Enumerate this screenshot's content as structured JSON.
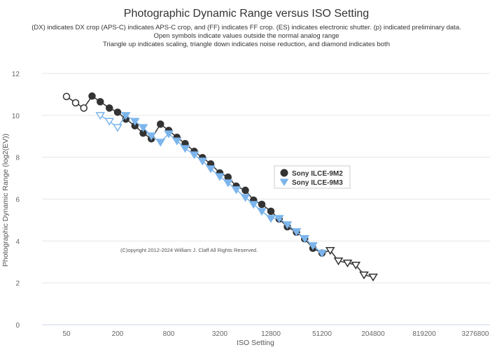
{
  "chart_data": {
    "type": "line",
    "title": "Photographic Dynamic Range versus ISO Setting",
    "subtitle": [
      "(DX) indicates DX crop (APS-C) indicates APS-C crop, and (FF) indicates FF crop. (ES) indicates electronic shutter. (p) indicated preliminary data.",
      "Open symbols indicate values outside the normal analog range",
      "Triangle up indicates scaling, triangle down indicates noise reduction, and diamond indicates both"
    ],
    "xlabel": "ISO Setting",
    "ylabel": "Photographic Dynamic Range (log2(EV))",
    "x_scale": "log2",
    "x_ticks": [
      "50",
      "200",
      "800",
      "3200",
      "12800",
      "51200",
      "204800",
      "819200",
      "3276800"
    ],
    "y_ticks": [
      "0",
      "2",
      "4",
      "6",
      "8",
      "10",
      "12"
    ],
    "ylim": [
      0,
      12
    ],
    "grid": "horizontal",
    "legend_position": "center-right",
    "copyright": "(C)opyright 2012-2024 William J. Claff All Rights Reserved.",
    "series": [
      {
        "name": "Sony ILCE-9M2",
        "color": "#333333",
        "marker": "circle",
        "points": [
          {
            "x": 50,
            "y": 10.9,
            "m": "open-circle"
          },
          {
            "x": 64,
            "y": 10.6,
            "m": "open-circle"
          },
          {
            "x": 80,
            "y": 10.35,
            "m": "open-circle"
          },
          {
            "x": 100,
            "y": 10.92,
            "m": "circle"
          },
          {
            "x": 125,
            "y": 10.65,
            "m": "circle"
          },
          {
            "x": 160,
            "y": 10.35,
            "m": "circle"
          },
          {
            "x": 200,
            "y": 10.15,
            "m": "circle"
          },
          {
            "x": 250,
            "y": 9.82,
            "m": "circle"
          },
          {
            "x": 320,
            "y": 9.5,
            "m": "circle"
          },
          {
            "x": 400,
            "y": 9.15,
            "m": "circle"
          },
          {
            "x": 500,
            "y": 8.88,
            "m": "circle"
          },
          {
            "x": 640,
            "y": 9.58,
            "m": "circle"
          },
          {
            "x": 800,
            "y": 9.28,
            "m": "circle"
          },
          {
            "x": 1000,
            "y": 8.95,
            "m": "circle"
          },
          {
            "x": 1250,
            "y": 8.65,
            "m": "circle"
          },
          {
            "x": 1600,
            "y": 8.28,
            "m": "circle"
          },
          {
            "x": 2000,
            "y": 7.98,
            "m": "circle"
          },
          {
            "x": 2500,
            "y": 7.68,
            "m": "circle"
          },
          {
            "x": 3200,
            "y": 7.25,
            "m": "circle"
          },
          {
            "x": 4000,
            "y": 7.05,
            "m": "circle"
          },
          {
            "x": 5000,
            "y": 6.62,
            "m": "circle"
          },
          {
            "x": 6400,
            "y": 6.42,
            "m": "circle"
          },
          {
            "x": 8000,
            "y": 5.95,
            "m": "circle"
          },
          {
            "x": 10000,
            "y": 5.75,
            "m": "circle"
          },
          {
            "x": 12800,
            "y": 5.42,
            "m": "circle"
          },
          {
            "x": 16000,
            "y": 5.05,
            "m": "circle"
          },
          {
            "x": 20000,
            "y": 4.68,
            "m": "circle"
          },
          {
            "x": 25600,
            "y": 4.42,
            "m": "circle"
          },
          {
            "x": 32000,
            "y": 4.1,
            "m": "circle"
          },
          {
            "x": 40000,
            "y": 3.65,
            "m": "circle"
          },
          {
            "x": 51200,
            "y": 3.42,
            "m": "circle"
          },
          {
            "x": 64000,
            "y": 3.55,
            "m": "open-triangle-down"
          },
          {
            "x": 80000,
            "y": 3.05,
            "m": "open-triangle-down"
          },
          {
            "x": 102400,
            "y": 2.95,
            "m": "open-triangle-down"
          },
          {
            "x": 128000,
            "y": 2.85,
            "m": "open-triangle-down"
          },
          {
            "x": 160000,
            "y": 2.38,
            "m": "open-triangle-down"
          },
          {
            "x": 204800,
            "y": 2.28,
            "m": "open-triangle-down"
          }
        ]
      },
      {
        "name": "Sony ILCE-9M3",
        "color": "#7cb5ec",
        "marker": "triangle-down",
        "points": [
          {
            "x": 125,
            "y": 10.0,
            "m": "open-triangle-down"
          },
          {
            "x": 160,
            "y": 9.72,
            "m": "open-triangle-down"
          },
          {
            "x": 200,
            "y": 9.42,
            "m": "open-triangle-down"
          },
          {
            "x": 250,
            "y": 10.0,
            "m": "triangle-down"
          },
          {
            "x": 320,
            "y": 9.72,
            "m": "triangle-down"
          },
          {
            "x": 400,
            "y": 9.42,
            "m": "triangle-down"
          },
          {
            "x": 500,
            "y": 9.02,
            "m": "triangle-down"
          },
          {
            "x": 640,
            "y": 8.72,
            "m": "triangle-down"
          },
          {
            "x": 800,
            "y": 9.12,
            "m": "triangle-down"
          },
          {
            "x": 1000,
            "y": 8.78,
            "m": "triangle-down"
          },
          {
            "x": 1250,
            "y": 8.42,
            "m": "triangle-down"
          },
          {
            "x": 1600,
            "y": 8.12,
            "m": "triangle-down"
          },
          {
            "x": 2000,
            "y": 7.82,
            "m": "triangle-down"
          },
          {
            "x": 2500,
            "y": 7.45,
            "m": "triangle-down"
          },
          {
            "x": 3200,
            "y": 7.08,
            "m": "triangle-down"
          },
          {
            "x": 4000,
            "y": 6.78,
            "m": "triangle-down"
          },
          {
            "x": 5000,
            "y": 6.45,
            "m": "triangle-down"
          },
          {
            "x": 6400,
            "y": 6.08,
            "m": "triangle-down"
          },
          {
            "x": 8000,
            "y": 5.75,
            "m": "triangle-down"
          },
          {
            "x": 10000,
            "y": 5.42,
            "m": "triangle-down"
          },
          {
            "x": 12800,
            "y": 5.08,
            "m": "triangle-down"
          },
          {
            "x": 16000,
            "y": 5.08,
            "m": "triangle-down"
          },
          {
            "x": 20000,
            "y": 4.78,
            "m": "triangle-down"
          },
          {
            "x": 25600,
            "y": 4.45,
            "m": "triangle-down"
          },
          {
            "x": 32000,
            "y": 4.12,
            "m": "triangle-down"
          },
          {
            "x": 40000,
            "y": 3.78,
            "m": "triangle-down"
          },
          {
            "x": 51200,
            "y": 3.42,
            "m": "triangle-down"
          }
        ]
      }
    ]
  }
}
